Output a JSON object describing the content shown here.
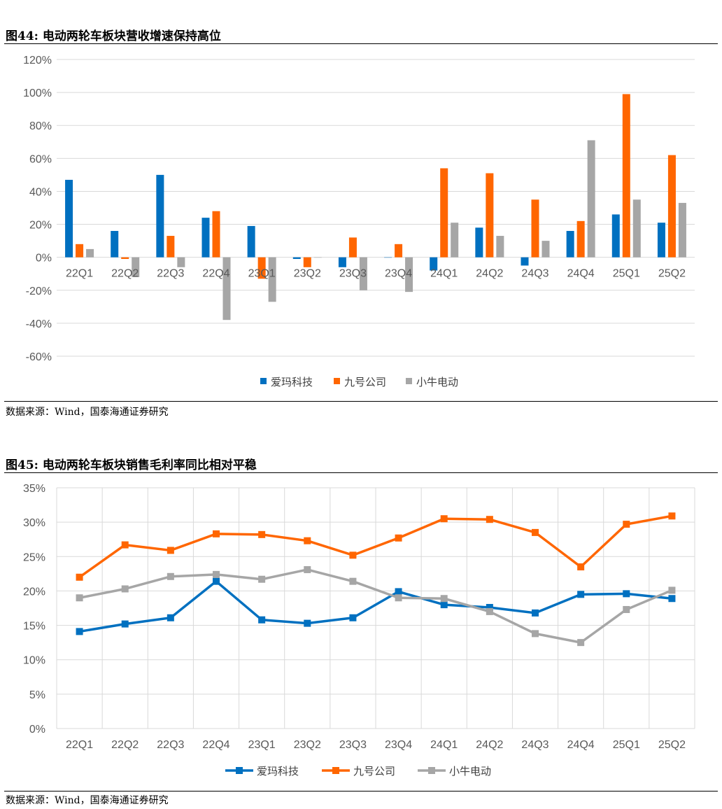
{
  "chart1": {
    "caption": "图44:  电动两轮车板块营收增速保持高位",
    "source": "数据来源：Wind，国泰海通证券研究"
  },
  "chart2": {
    "caption": "图45:  电动两轮车板块销售毛利率同比相对平稳",
    "source": "数据来源：Wind，国泰海通证券研究"
  },
  "colors": {
    "series1": "#0070C0",
    "series2": "#FF6600",
    "series3": "#A6A6A6",
    "grid": "#D9D9D9"
  },
  "chart_data": [
    {
      "type": "bar",
      "title": "",
      "xlabel": "",
      "ylabel": "",
      "ylim": [
        -60,
        120
      ],
      "yticks": [
        "120%",
        "100%",
        "80%",
        "60%",
        "40%",
        "20%",
        "0%",
        "-20%",
        "-40%",
        "-60%"
      ],
      "grid": true,
      "legend_position": "bottom",
      "categories": [
        "22Q1",
        "22Q2",
        "22Q3",
        "22Q4",
        "23Q1",
        "23Q2",
        "23Q3",
        "23Q4",
        "24Q1",
        "24Q2",
        "24Q3",
        "24Q4",
        "25Q1",
        "25Q2"
      ],
      "series": [
        {
          "name": "爱玛科技",
          "values": [
            47,
            16,
            50,
            24,
            19,
            -1,
            -6,
            0,
            -8,
            18,
            -5,
            16,
            26,
            21
          ]
        },
        {
          "name": "九号公司",
          "values": [
            8,
            -1,
            13,
            28,
            -13,
            -6,
            12,
            8,
            54,
            51,
            35,
            22,
            99,
            62
          ]
        },
        {
          "name": "小牛电动",
          "values": [
            5,
            -12,
            -6,
            -38,
            -27,
            0,
            -20,
            -21,
            21,
            13,
            10,
            71,
            35,
            33
          ]
        }
      ]
    },
    {
      "type": "line",
      "title": "",
      "xlabel": "",
      "ylabel": "",
      "ylim": [
        0,
        35
      ],
      "yticks": [
        "35%",
        "30%",
        "25%",
        "20%",
        "15%",
        "10%",
        "5%",
        "0%"
      ],
      "grid": true,
      "legend_position": "bottom",
      "categories": [
        "22Q1",
        "22Q2",
        "22Q3",
        "22Q4",
        "23Q1",
        "23Q2",
        "23Q3",
        "23Q4",
        "24Q1",
        "24Q2",
        "24Q3",
        "24Q4",
        "25Q1",
        "25Q2"
      ],
      "series": [
        {
          "name": "爱玛科技",
          "values": [
            14.1,
            15.2,
            16.1,
            21.4,
            15.8,
            15.3,
            16.1,
            19.9,
            18.0,
            17.6,
            16.8,
            19.5,
            19.6,
            18.9
          ]
        },
        {
          "name": "九号公司",
          "values": [
            22.0,
            26.7,
            25.9,
            28.3,
            28.2,
            27.3,
            25.2,
            27.7,
            30.5,
            30.4,
            28.5,
            23.5,
            29.7,
            30.9
          ]
        },
        {
          "name": "小牛电动",
          "values": [
            19.0,
            20.3,
            22.1,
            22.4,
            21.7,
            23.1,
            21.4,
            19.0,
            18.9,
            17.0,
            13.8,
            12.5,
            17.3,
            20.1
          ]
        }
      ]
    }
  ]
}
